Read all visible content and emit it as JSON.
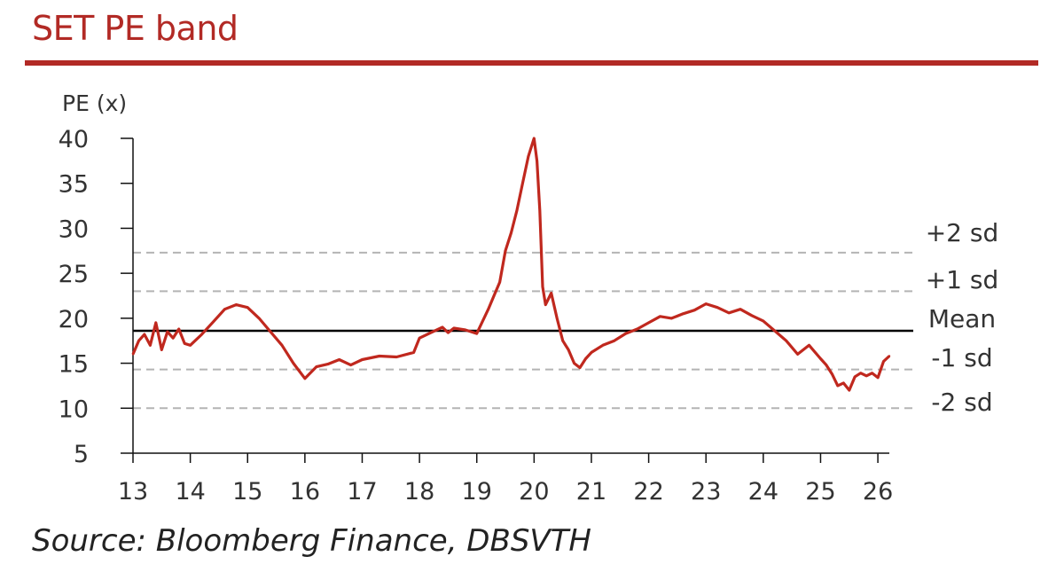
{
  "title": "SET PE band",
  "source": "Source: Bloomberg Finance, DBSVTH",
  "colors": {
    "accent": "#b22a25",
    "series": "#c0281e",
    "mean": "#000000",
    "band": "#b4b4b4"
  },
  "chart_data": {
    "type": "line",
    "ylabel": "PE (x)",
    "ylim": [
      5,
      40
    ],
    "yticks": [
      "40",
      "35",
      "30",
      "25",
      "20",
      "15",
      "10",
      "5"
    ],
    "xlim": [
      13,
      26.2
    ],
    "xticks": [
      "13",
      "14",
      "15",
      "16",
      "17",
      "18",
      "19",
      "20",
      "21",
      "22",
      "23",
      "24",
      "25",
      "26"
    ],
    "grid": false,
    "bands": [
      {
        "label": "+2 sd",
        "value": 27.3
      },
      {
        "label": "+1 sd",
        "value": 23.0
      },
      {
        "label": "Mean",
        "value": 18.6
      },
      {
        "label": "-1 sd",
        "value": 14.3
      },
      {
        "label": "-2 sd",
        "value": 10.0
      }
    ],
    "series": [
      {
        "x": [
          13.0,
          13.1,
          13.2,
          13.3,
          13.4,
          13.5,
          13.6,
          13.7,
          13.8,
          13.9,
          14.0,
          14.2,
          14.4,
          14.6,
          14.8,
          15.0,
          15.2,
          15.4,
          15.6,
          15.8,
          16.0,
          16.2,
          16.4,
          16.6,
          16.8,
          17.0,
          17.3,
          17.6,
          17.9,
          18.0,
          18.2,
          18.4,
          18.5,
          18.6,
          18.8,
          19.0,
          19.2,
          19.3,
          19.4,
          19.5,
          19.6,
          19.7,
          19.8,
          19.9,
          20.0,
          20.05,
          20.1,
          20.15,
          20.2,
          20.3,
          20.4,
          20.5,
          20.6,
          20.7,
          20.8,
          20.9,
          21.0,
          21.2,
          21.4,
          21.6,
          21.8,
          22.0,
          22.2,
          22.4,
          22.6,
          22.8,
          23.0,
          23.2,
          23.4,
          23.6,
          23.8,
          24.0,
          24.2,
          24.4,
          24.6,
          24.8,
          25.0,
          25.1,
          25.2,
          25.3,
          25.4,
          25.5,
          25.6,
          25.7,
          25.8,
          25.9,
          26.0,
          26.1,
          26.2
        ],
        "y": [
          16.0,
          17.5,
          18.2,
          17.0,
          19.5,
          16.5,
          18.5,
          17.8,
          18.8,
          17.2,
          17.0,
          18.2,
          19.6,
          21.0,
          21.5,
          21.2,
          20.0,
          18.5,
          17.0,
          15.0,
          13.3,
          14.6,
          14.9,
          15.4,
          14.8,
          15.4,
          15.8,
          15.7,
          16.2,
          17.8,
          18.4,
          19.0,
          18.4,
          18.9,
          18.7,
          18.3,
          21.0,
          22.5,
          24.0,
          27.5,
          29.5,
          32.0,
          35.0,
          38.0,
          40.0,
          37.5,
          32.0,
          23.5,
          21.5,
          22.8,
          20.0,
          17.5,
          16.5,
          15.0,
          14.5,
          15.5,
          16.2,
          17.0,
          17.5,
          18.3,
          18.8,
          19.5,
          20.2,
          20.0,
          20.5,
          20.9,
          21.6,
          21.2,
          20.6,
          21.0,
          20.3,
          19.7,
          18.6,
          17.5,
          16.0,
          17.0,
          15.5,
          14.8,
          13.8,
          12.5,
          12.8,
          12.0,
          13.5,
          13.9,
          13.6,
          13.9,
          13.4,
          15.2,
          15.8
        ]
      }
    ]
  }
}
